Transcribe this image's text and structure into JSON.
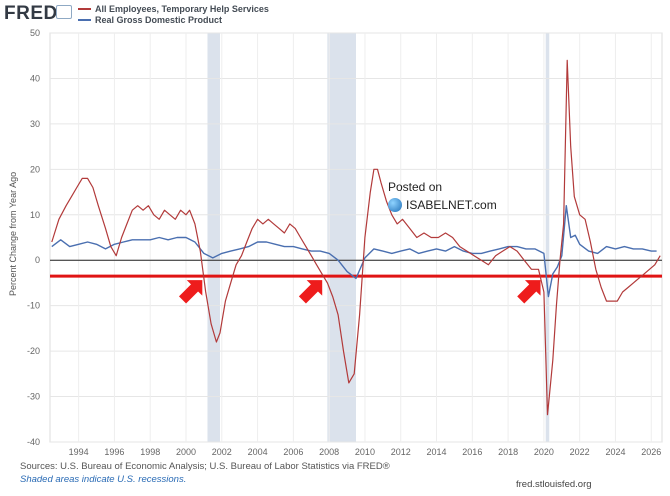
{
  "logo": "FRED",
  "watermark": {
    "line1": "Posted on",
    "line2": "ISABELNET.com"
  },
  "footer": {
    "sources": "Sources: U.S. Bureau of Economic Analysis; U.S. Bureau of Labor Statistics via FRED®",
    "note": "Shaded areas indicate U.S. recessions.",
    "site": "fred.stlouisfed.org"
  },
  "colors": {
    "temp_help": "#b23a3a",
    "gdp": "#4a6fb0",
    "recession": "#dbe2ec",
    "threshold": "#e01414",
    "arrow": "#ee1c1c"
  },
  "chart_data": {
    "type": "line",
    "title": "",
    "xlabel": "",
    "ylabel": "Percent Change from Year Ago",
    "xlim": [
      1992.4,
      2026.6
    ],
    "ylim": [
      -40,
      50
    ],
    "y_ticks": [
      -40,
      -30,
      -20,
      -10,
      0,
      10,
      20,
      30,
      40,
      50
    ],
    "x_ticks": [
      "1994",
      "1996",
      "1998",
      "2000",
      "2002",
      "2004",
      "2006",
      "2008",
      "2010",
      "2012",
      "2014",
      "2016",
      "2018",
      "2020",
      "2022",
      "2024",
      "2026"
    ],
    "grid": true,
    "legend_position": "top-left",
    "recessions": [
      [
        2001.2,
        2001.9
      ],
      [
        2007.9,
        2009.5
      ],
      [
        2020.1,
        2020.3
      ]
    ],
    "threshold_line": -3.5,
    "arrows_at": [
      2000.8,
      2007.5,
      2019.7
    ],
    "series": [
      {
        "name": "All Employees, Temporary Help Services",
        "x": [
          1992.5,
          1992.9,
          1993.3,
          1993.6,
          1993.9,
          1994.2,
          1994.5,
          1994.8,
          1995.1,
          1995.5,
          1995.8,
          1996.1,
          1996.4,
          1996.7,
          1997.0,
          1997.3,
          1997.6,
          1997.9,
          1998.2,
          1998.5,
          1998.8,
          1999.1,
          1999.4,
          1999.7,
          2000.0,
          2000.2,
          2000.5,
          2000.8,
          2001.1,
          2001.4,
          2001.7,
          2001.9,
          2002.2,
          2002.5,
          2002.8,
          2003.1,
          2003.4,
          2003.7,
          2004.0,
          2004.3,
          2004.6,
          2004.9,
          2005.2,
          2005.5,
          2005.8,
          2006.1,
          2006.4,
          2006.7,
          2007.0,
          2007.3,
          2007.6,
          2007.9,
          2008.2,
          2008.5,
          2008.8,
          2009.1,
          2009.4,
          2009.7,
          2010.0,
          2010.3,
          2010.5,
          2010.7,
          2010.9,
          2011.2,
          2011.5,
          2011.8,
          2012.1,
          2012.5,
          2012.9,
          2013.3,
          2013.7,
          2014.1,
          2014.5,
          2014.9,
          2015.3,
          2015.7,
          2016.1,
          2016.5,
          2016.9,
          2017.3,
          2017.7,
          2018.1,
          2018.5,
          2018.9,
          2019.3,
          2019.7,
          2020.0,
          2020.2,
          2020.3,
          2020.5,
          2020.7,
          2020.9,
          2021.1,
          2021.3,
          2021.5,
          2021.7,
          2022.0,
          2022.3,
          2022.6,
          2022.9,
          2023.2,
          2023.5,
          2023.8,
          2024.1,
          2024.4,
          2024.7,
          2025.0,
          2025.3,
          2025.6,
          2025.9,
          2026.2,
          2026.5
        ],
        "values": [
          4,
          9,
          12,
          14,
          16,
          18,
          18,
          16,
          12,
          7,
          3,
          1,
          5,
          8,
          11,
          12,
          11,
          12,
          10,
          9,
          11,
          10,
          9,
          11,
          10,
          11,
          8,
          2,
          -7,
          -14,
          -18,
          -16,
          -9,
          -5,
          -1,
          1,
          4,
          7,
          9,
          8,
          9,
          8,
          7,
          6,
          8,
          7,
          5,
          3,
          1,
          -1,
          -3,
          -5,
          -8,
          -12,
          -20,
          -27,
          -25,
          -12,
          5,
          15,
          20,
          20,
          17,
          13,
          10,
          8,
          9,
          7,
          5,
          6,
          5,
          5,
          6,
          5,
          3,
          2,
          1,
          0,
          -1,
          1,
          2,
          3,
          2,
          0,
          -2,
          -2,
          -7,
          -34,
          -30,
          -22,
          -10,
          0,
          8,
          44,
          25,
          14,
          10,
          9,
          4,
          -2,
          -6,
          -9,
          -9,
          -9,
          -7,
          -6,
          -5,
          -4,
          -3,
          -2,
          -1,
          1
        ]
      },
      {
        "name": "Real Gross Domestic Product",
        "x": [
          1992.5,
          1993.0,
          1993.5,
          1994.0,
          1994.5,
          1995.0,
          1995.5,
          1996.0,
          1996.5,
          1997.0,
          1997.5,
          1998.0,
          1998.5,
          1999.0,
          1999.5,
          2000.0,
          2000.5,
          2001.0,
          2001.5,
          2002.0,
          2002.5,
          2003.0,
          2003.5,
          2004.0,
          2004.5,
          2005.0,
          2005.5,
          2006.0,
          2006.5,
          2007.0,
          2007.5,
          2008.0,
          2008.5,
          2009.0,
          2009.5,
          2010.0,
          2010.5,
          2011.0,
          2011.5,
          2012.0,
          2012.5,
          2013.0,
          2013.5,
          2014.0,
          2014.5,
          2015.0,
          2015.5,
          2016.0,
          2016.5,
          2017.0,
          2017.5,
          2018.0,
          2018.5,
          2019.0,
          2019.5,
          2020.0,
          2020.25,
          2020.5,
          2020.75,
          2021.0,
          2021.25,
          2021.5,
          2021.75,
          2022.0,
          2022.5,
          2023.0,
          2023.5,
          2024.0,
          2024.5,
          2025.0,
          2025.5,
          2026.0,
          2026.3
        ],
        "values": [
          3,
          4.5,
          3,
          3.5,
          4,
          3.5,
          2.5,
          3.5,
          4,
          4.5,
          4.5,
          4.5,
          5,
          4.5,
          5,
          5,
          4,
          1.5,
          0.5,
          1.5,
          2,
          2.5,
          3,
          4,
          4,
          3.5,
          3,
          3,
          2.5,
          2,
          2,
          1.5,
          0,
          -2.5,
          -4,
          0.5,
          2.5,
          2,
          1.5,
          2,
          2.5,
          1.5,
          2,
          2.5,
          2,
          3,
          2,
          1.5,
          1.5,
          2,
          2.5,
          3,
          3,
          2.5,
          2.5,
          1.5,
          -8,
          -3,
          -1.5,
          1,
          12,
          5,
          5.5,
          3.5,
          2,
          1.5,
          3,
          2.5,
          3,
          2.5,
          2.5,
          2,
          2
        ]
      }
    ]
  }
}
